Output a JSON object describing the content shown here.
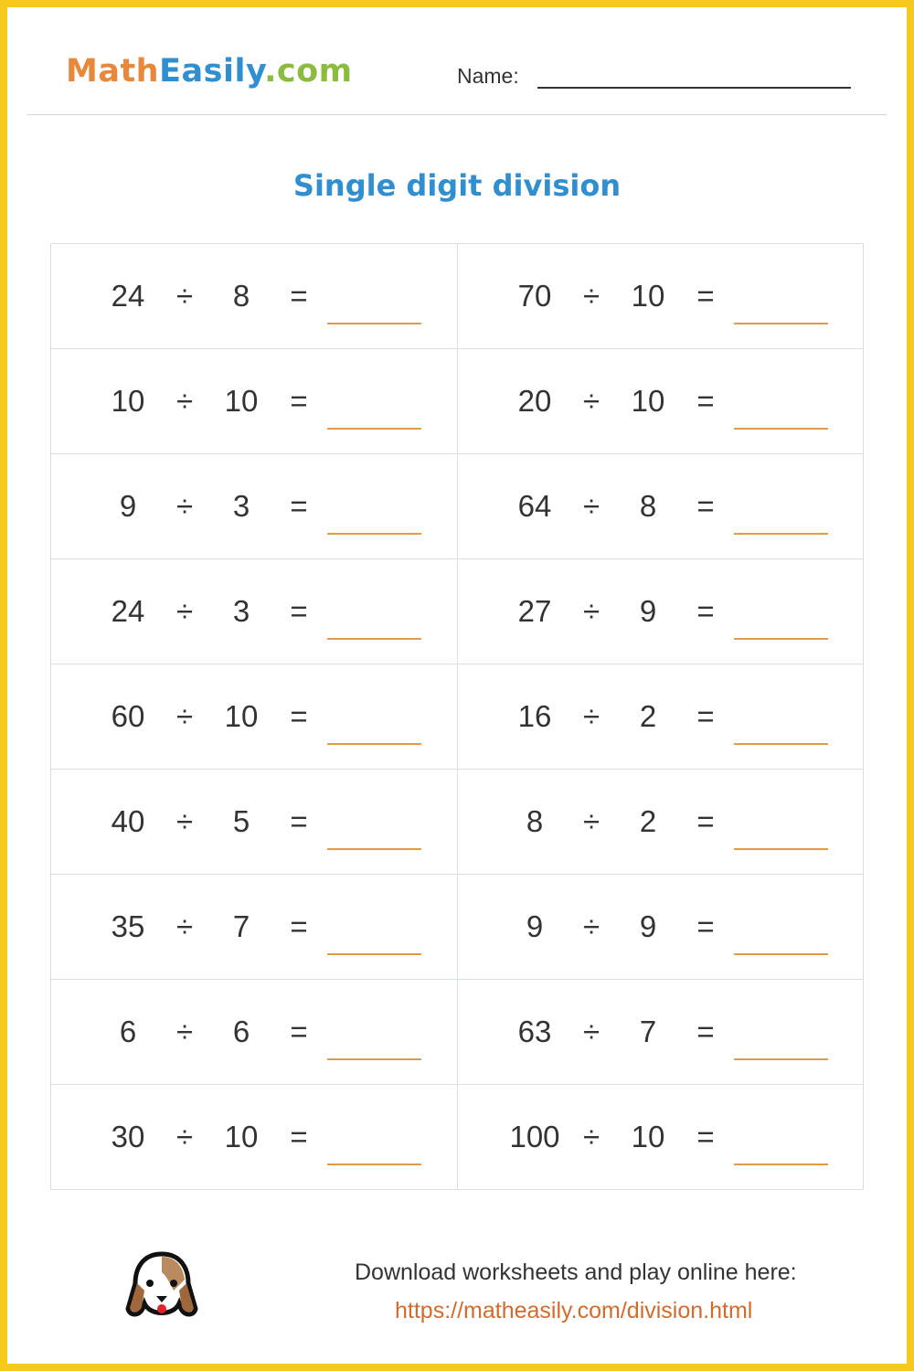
{
  "header": {
    "logo": {
      "part1": "Math",
      "part2": "Easily",
      "part3": ".com"
    },
    "name_label": "Name:"
  },
  "title": "Single digit division",
  "operator": "÷",
  "equals": "=",
  "problems": [
    [
      {
        "a": "24",
        "b": "8"
      },
      {
        "a": "70",
        "b": "10"
      }
    ],
    [
      {
        "a": "10",
        "b": "10"
      },
      {
        "a": "20",
        "b": "10"
      }
    ],
    [
      {
        "a": "9",
        "b": "3"
      },
      {
        "a": "64",
        "b": "8"
      }
    ],
    [
      {
        "a": "24",
        "b": "3"
      },
      {
        "a": "27",
        "b": "9"
      }
    ],
    [
      {
        "a": "60",
        "b": "10"
      },
      {
        "a": "16",
        "b": "2"
      }
    ],
    [
      {
        "a": "40",
        "b": "5"
      },
      {
        "a": "8",
        "b": "2"
      }
    ],
    [
      {
        "a": "35",
        "b": "7"
      },
      {
        "a": "9",
        "b": "9"
      }
    ],
    [
      {
        "a": "6",
        "b": "6"
      },
      {
        "a": "63",
        "b": "7"
      }
    ],
    [
      {
        "a": "30",
        "b": "10"
      },
      {
        "a": "100",
        "b": "10"
      }
    ]
  ],
  "footer": {
    "text": "Download worksheets and play online here:",
    "link": "https://matheasily.com/division.html"
  },
  "colors": {
    "border": "#f7c81e",
    "accent": "#2f8fd0",
    "answer_line": "#e29a4c"
  }
}
